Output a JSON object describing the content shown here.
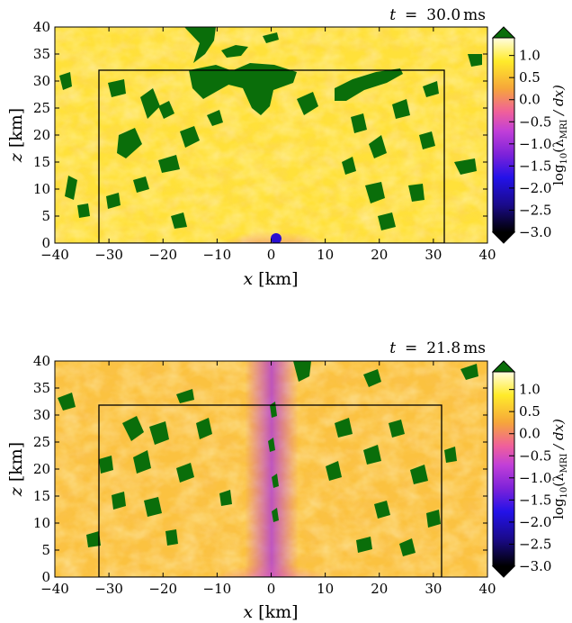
{
  "chart_data": [
    {
      "type": "heatmap",
      "panel": "top",
      "time_label": "t = 30.0 ms",
      "time_symbol": "t",
      "time_value": "30.0",
      "time_unit": "ms",
      "xlabel_var": "x",
      "xlabel_unit": "[km]",
      "ylabel_var": "z",
      "ylabel_unit": "[km]",
      "xlim": [
        -40,
        40
      ],
      "ylim": [
        0,
        40
      ],
      "xticks": [
        -40,
        -30,
        -20,
        -10,
        0,
        10,
        20,
        30,
        40
      ],
      "yticks": [
        0,
        5,
        10,
        15,
        20,
        25,
        30,
        35,
        40
      ],
      "xtick_labels": [
        "−40",
        "−30",
        "−20",
        "−10",
        "0",
        "10",
        "20",
        "30",
        "40"
      ],
      "ytick_labels": [
        "0",
        "5",
        "10",
        "15",
        "20",
        "25",
        "30",
        "35",
        "40"
      ],
      "inner_box": {
        "x": [
          -32,
          32
        ],
        "z": [
          0,
          31.5
        ]
      },
      "colorbar": {
        "label": "log10(λMRI / dx)",
        "label_prefix": "log",
        "label_sub": "10",
        "label_paren": "(λ",
        "label_sub2": "MRI",
        "label_suffix": " / dx)",
        "range": [
          -3.0,
          1.4
        ],
        "ticks": [
          1.0,
          0.5,
          0.0,
          -0.5,
          -1.0,
          -1.5,
          -2.0,
          -2.5,
          -3.0
        ],
        "tick_labels": [
          "1.0",
          "0.5",
          "0.0",
          "−0.5",
          "−1.0",
          "−1.5",
          "−2.0",
          "−2.5",
          "−3.0"
        ],
        "over_color": "#0a6e0a",
        "under_color": "#000000"
      }
    },
    {
      "type": "heatmap",
      "panel": "bottom",
      "time_label": "t = 21.8 ms",
      "time_symbol": "t",
      "time_value": "21.8",
      "time_unit": "ms",
      "xlabel_var": "x",
      "xlabel_unit": "[km]",
      "ylabel_var": "z",
      "ylabel_unit": "[km]",
      "xlim": [
        -40,
        40
      ],
      "ylim": [
        0,
        40
      ],
      "xticks": [
        -40,
        -30,
        -20,
        -10,
        0,
        10,
        20,
        30,
        40
      ],
      "yticks": [
        0,
        5,
        10,
        15,
        20,
        25,
        30,
        35,
        40
      ],
      "xtick_labels": [
        "−40",
        "−30",
        "−20",
        "−10",
        "0",
        "10",
        "20",
        "30",
        "40"
      ],
      "ytick_labels": [
        "0",
        "5",
        "10",
        "15",
        "20",
        "25",
        "30",
        "35",
        "40"
      ],
      "inner_box": {
        "x": [
          -31.5,
          31.5
        ],
        "z": [
          0,
          31.5
        ]
      },
      "colorbar": {
        "label": "log10(λMRI / dx)",
        "label_prefix": "log",
        "label_sub": "10",
        "label_paren": "(λ",
        "label_sub2": "MRI",
        "label_suffix": " / dx)",
        "range": [
          -3.0,
          1.4
        ],
        "ticks": [
          1.0,
          0.5,
          0.0,
          -0.5,
          -1.0,
          -1.5,
          -2.0,
          -2.5,
          -3.0
        ],
        "tick_labels": [
          "1.0",
          "0.5",
          "0.0",
          "−0.5",
          "−1.0",
          "−1.5",
          "−2.0",
          "−2.5",
          "−3.0"
        ],
        "over_color": "#0a6e0a",
        "under_color": "#000000"
      }
    }
  ],
  "colors": {
    "green": "#0a6e0a",
    "yellow": "#ffeb2a",
    "orange": "#f6a63a",
    "magenta": "#d14bd6",
    "purple": "#7d22d9",
    "blue": "#2312c8",
    "black": "#000000"
  }
}
